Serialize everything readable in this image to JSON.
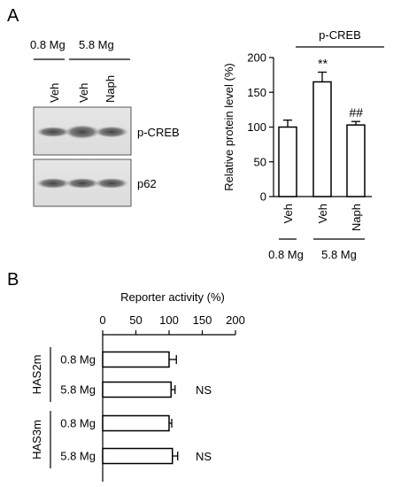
{
  "panel_a": {
    "letter": "A",
    "blot": {
      "group_low": "0.8 Mg",
      "group_high": "5.8 Mg",
      "lanes": [
        "Veh",
        "Veh",
        "Naph"
      ],
      "labels": [
        "p-CREB",
        "p62"
      ]
    }
  },
  "panel_b": {
    "letter": "B"
  },
  "chart_data": [
    {
      "type": "bar",
      "title": "p-CREB",
      "ylabel": "Relative protein level  (%)",
      "ylim": [
        0,
        200
      ],
      "yticks": [
        "0",
        "50",
        "100",
        "150",
        "200"
      ],
      "categories": [
        "Veh",
        "Veh",
        "Naph"
      ],
      "groups": [
        {
          "label": "0.8 Mg",
          "span": [
            0,
            0
          ]
        },
        {
          "label": "5.8 Mg",
          "span": [
            1,
            2
          ]
        }
      ],
      "values": [
        100,
        165,
        103
      ],
      "errors": [
        10,
        14,
        5
      ],
      "annotations": [
        "",
        "**",
        "##"
      ],
      "bar_color": "#ffffff",
      "grid": false
    },
    {
      "type": "bar",
      "orientation": "horizontal",
      "title": "Reporter activity  (%)",
      "xlim": [
        0,
        200
      ],
      "xticks": [
        "0",
        "50",
        "100",
        "150",
        "200"
      ],
      "categories": [
        "0.8 Mg",
        "5.8 Mg",
        "0.8 Mg",
        "5.8 Mg"
      ],
      "groups": [
        {
          "label": "HAS2m",
          "span": [
            0,
            1
          ]
        },
        {
          "label": "HAS3m",
          "span": [
            2,
            3
          ]
        }
      ],
      "values": [
        100,
        103,
        100,
        105
      ],
      "errors": [
        11,
        6,
        4,
        8
      ],
      "annotations": [
        "",
        "NS",
        "",
        "NS"
      ],
      "bar_color": "#ffffff",
      "grid": false
    }
  ]
}
